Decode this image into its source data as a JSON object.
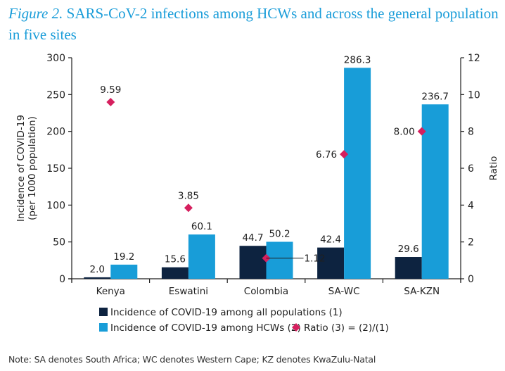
{
  "figure": {
    "label": "Figure 2.",
    "title": "SARS-CoV-2 infections among HCWs and across the general population in five sites"
  },
  "note": "Note: SA denotes South Africa; WC denotes Western Cape; KZ denotes KwaZulu-Natal",
  "colors": {
    "all_populations": "#0d2340",
    "hcws": "#189dd8",
    "ratio": "#d61f5e",
    "title": "#1a9dd9"
  },
  "chart_data": {
    "type": "bar",
    "title": "SARS-CoV-2 infections among HCWs and across the general population in five sites",
    "categories": [
      "Kenya",
      "Eswatini",
      "Colombia",
      "SA-WC",
      "SA-KZN"
    ],
    "series": [
      {
        "name": "Incidence of COVID-19 among all populations (1)",
        "type": "bar",
        "axis": "left",
        "values": [
          2.0,
          15.6,
          44.7,
          42.4,
          29.6
        ],
        "labels": [
          "2.0",
          "15.6",
          "44.7",
          "42.4",
          "29.6"
        ]
      },
      {
        "name": "Incidence of COVID-19 among HCWs (2)",
        "type": "bar",
        "axis": "left",
        "values": [
          19.2,
          60.1,
          50.2,
          286.3,
          236.7
        ],
        "labels": [
          "19.2",
          "60.1",
          "50.2",
          "286.3",
          "236.7"
        ]
      },
      {
        "name": "Ratio (3) = (2)/(1)",
        "type": "scatter",
        "marker": "diamond",
        "axis": "right",
        "values": [
          9.59,
          3.85,
          1.12,
          6.76,
          8.0
        ],
        "labels": [
          "9.59",
          "3.85",
          "1.12",
          "6.76",
          "8.00"
        ]
      }
    ],
    "ylabel": "Incidence of COVID-19 (per 1000 population)",
    "ylabel_lines": [
      "Incidence of COVID-19",
      "(per 1000 population)"
    ],
    "y2label": "Ratio",
    "ylim": [
      0,
      300
    ],
    "y2lim": [
      0,
      12
    ],
    "yticks": [
      0,
      50,
      100,
      150,
      200,
      250,
      300
    ],
    "y2ticks": [
      0,
      2,
      4,
      6,
      8,
      10,
      12
    ],
    "grid": false,
    "legend_position": "bottom",
    "legend": [
      "Incidence of COVID-19 among all populations (1)",
      "Incidence of COVID-19 among HCWs (2)",
      "Ratio (3) = (2)/(1)"
    ]
  }
}
